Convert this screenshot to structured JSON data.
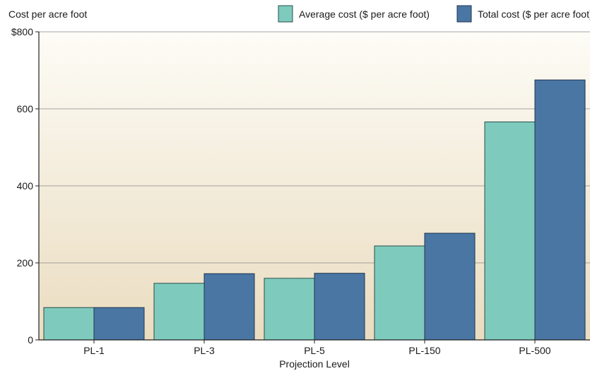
{
  "chart_data": {
    "type": "bar",
    "ylabel": "Cost per acre foot",
    "xlabel": "Projection Level",
    "categories": [
      "PL-1",
      "PL-3",
      "PL-5",
      "PL-150",
      "PL-500"
    ],
    "series": [
      {
        "name": "Average cost ($ per acre foot)",
        "color": "#7ecbbd",
        "values": [
          84,
          147,
          160,
          244,
          566
        ]
      },
      {
        "name": "Total cost ($ per acre foot)",
        "color": "#4a76a3",
        "values": [
          84,
          172,
          173,
          277,
          675
        ]
      }
    ],
    "yticks": [
      {
        "value": 0,
        "label": "0"
      },
      {
        "value": 200,
        "label": "200"
      },
      {
        "value": 400,
        "label": "400"
      },
      {
        "value": 600,
        "label": "600"
      },
      {
        "value": 800,
        "label": "$800"
      }
    ],
    "ylim": [
      0,
      800
    ],
    "grid": true,
    "legend": "top-right"
  }
}
